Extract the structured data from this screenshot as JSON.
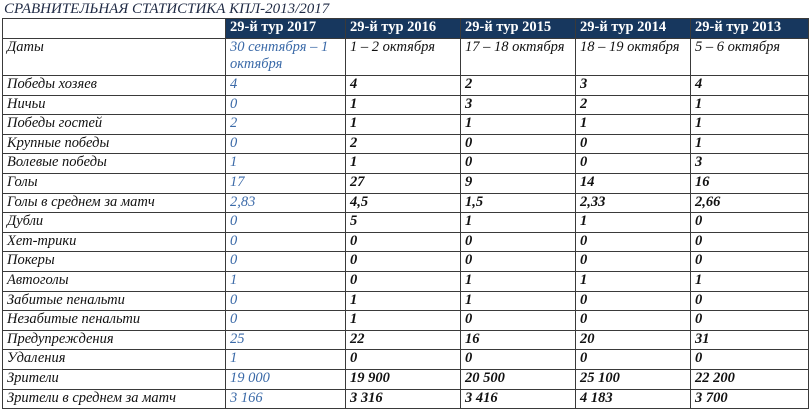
{
  "table": {
    "title": "СРАВНИТЕЛЬНАЯ СТАТИСТИКА КПЛ-2013/2017",
    "headers": [
      "29-й тур 2017",
      "29-й тур 2016",
      "29-й тур 2015",
      "29-й тур 2014",
      "29-й тур 2013"
    ],
    "rows": [
      [
        "Даты",
        "30 сентября – 1 октября",
        "1 – 2 октября",
        "17 – 18 октября",
        "18 – 19 октября",
        "5 – 6 октября"
      ],
      [
        "Победы хозяев",
        "4",
        "4",
        "2",
        "3",
        "4"
      ],
      [
        "Ничьи",
        "0",
        "1",
        "3",
        "2",
        "1"
      ],
      [
        "Победы гостей",
        "2",
        "1",
        "1",
        "1",
        "1"
      ],
      [
        "Крупные победы",
        "0",
        "2",
        "0",
        "0",
        "1"
      ],
      [
        "Волевые победы",
        "1",
        "1",
        "0",
        "0",
        "3"
      ],
      [
        "Голы",
        "17",
        "27",
        "9",
        "14",
        "16"
      ],
      [
        "Голы в среднем за матч",
        "2,83",
        "4,5",
        "1,5",
        "2,33",
        "2,66"
      ],
      [
        "Дубли",
        "0",
        "5",
        "1",
        "1",
        "0"
      ],
      [
        "Хет-трики",
        "0",
        "0",
        "0",
        "0",
        "0"
      ],
      [
        "Покеры",
        "0",
        "0",
        "0",
        "0",
        "0"
      ],
      [
        "Автоголы",
        "1",
        "0",
        "1",
        "1",
        "1"
      ],
      [
        "Забитые пенальти",
        "0",
        "1",
        "1",
        "0",
        "0"
      ],
      [
        "Незабитые пенальти",
        "0",
        "1",
        "0",
        "0",
        "0"
      ],
      [
        "Предупреждения",
        "25",
        "22",
        "16",
        "20",
        "31"
      ],
      [
        "Удаления",
        "1",
        "0",
        "0",
        "0",
        "0"
      ],
      [
        "Зрители",
        "19 000",
        "19 900",
        "20 500",
        "25 100",
        "22 200"
      ],
      [
        "Зрители в среднем за матч",
        "3 166",
        "3 316",
        "3 416",
        "4 183",
        "3 700"
      ]
    ]
  }
}
